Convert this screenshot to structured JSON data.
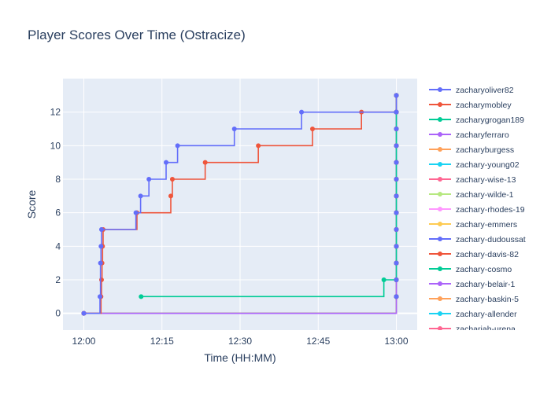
{
  "chart_data": {
    "type": "line",
    "title": "Player Scores Over Time (Ostracize)",
    "xlabel": "Time (HH:MM)",
    "ylabel": "Score",
    "x_tick_labels": [
      "12:00",
      "12:15",
      "12:30",
      "12:45",
      "13:00"
    ],
    "x_tick_minutes": [
      0,
      15,
      30,
      45,
      60
    ],
    "y_ticks": [
      0,
      2,
      4,
      6,
      8,
      10,
      12
    ],
    "xlim": [
      -4,
      64
    ],
    "ylim": [
      -1,
      14
    ],
    "grid": true,
    "legend_position": "right",
    "line_shape": "step",
    "series": [
      {
        "name": "zacharyoliver82",
        "color": "#636efa",
        "x": [
          0,
          3.1,
          3.2,
          3.3,
          3.4,
          10.0,
          10.9,
          12.5,
          15.8,
          18.0,
          28.9,
          41.8,
          60
        ],
        "y": [
          0,
          1,
          3,
          4,
          5,
          6,
          7,
          8,
          9,
          10,
          11,
          12,
          13
        ]
      },
      {
        "name": "zacharymobley",
        "color": "#EF553B",
        "x": [
          0,
          3.3,
          3.4,
          3.5,
          3.6,
          3.7,
          10.2,
          16.7,
          17.0,
          23.3,
          33.5,
          43.9,
          53.3,
          60
        ],
        "y": [
          0,
          1,
          2,
          3,
          4,
          5,
          6,
          7,
          8,
          9,
          10,
          11,
          12,
          13
        ]
      },
      {
        "name": "zacharygrogan189",
        "color": "#00cc96",
        "x": [
          11.0,
          57.6,
          60
        ],
        "y": [
          1,
          2,
          13
        ]
      },
      {
        "name": "zacharyferraro",
        "color": "#ab63fa",
        "x": [
          0,
          60
        ],
        "y": [
          0,
          13
        ]
      },
      {
        "name": "zacharyburgess",
        "color": "#FFA15A",
        "x": [
          0,
          60
        ],
        "y": [
          0,
          13
        ]
      },
      {
        "name": "zachary-young02",
        "color": "#19d3f3",
        "x": [
          0,
          60
        ],
        "y": [
          0,
          13
        ]
      },
      {
        "name": "zachary-wise-13",
        "color": "#FF6692",
        "x": [
          0,
          60
        ],
        "y": [
          0,
          13
        ]
      },
      {
        "name": "zachary-wilde-1",
        "color": "#B6E880",
        "x": [
          0,
          60
        ],
        "y": [
          0,
          13
        ]
      },
      {
        "name": "zachary-rhodes-19",
        "color": "#FF97FF",
        "x": [
          0,
          60
        ],
        "y": [
          0,
          13
        ]
      },
      {
        "name": "zachary-emmers",
        "color": "#FECB52",
        "x": [
          0,
          60
        ],
        "y": [
          0,
          13
        ]
      },
      {
        "name": "zachary-dudoussat",
        "color": "#636efa",
        "x": [
          0,
          60
        ],
        "y": [
          0,
          13
        ]
      },
      {
        "name": "zachary-davis-82",
        "color": "#EF553B",
        "x": [
          0,
          60
        ],
        "y": [
          0,
          13
        ]
      },
      {
        "name": "zachary-cosmo",
        "color": "#00cc96",
        "x": [
          0,
          60
        ],
        "y": [
          0,
          13
        ]
      },
      {
        "name": "zachary-belair-1",
        "color": "#ab63fa",
        "x": [
          0,
          60
        ],
        "y": [
          0,
          13
        ]
      },
      {
        "name": "zachary-baskin-5",
        "color": "#FFA15A",
        "x": [
          0,
          60
        ],
        "y": [
          0,
          13
        ]
      },
      {
        "name": "zachary-allender",
        "color": "#19d3f3",
        "x": [
          0,
          60
        ],
        "y": [
          0,
          13
        ]
      },
      {
        "name": "zachariah-urena",
        "color": "#FF6692",
        "x": [
          0,
          60
        ],
        "y": [
          0,
          13
        ]
      }
    ]
  }
}
